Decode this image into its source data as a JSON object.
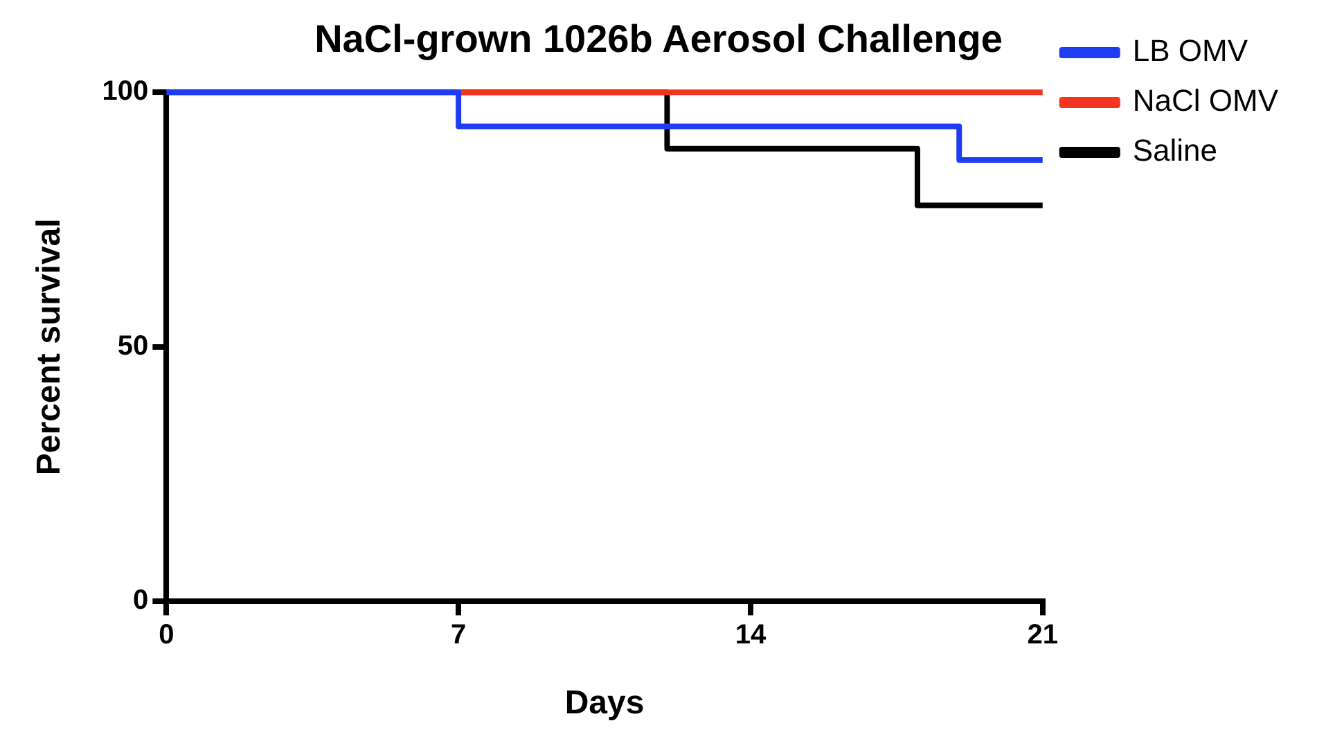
{
  "chart_data": {
    "type": "step",
    "title": "NaCl-grown 1026b Aerosol Challenge",
    "xlabel": "Days",
    "ylabel": "Percent survival",
    "xlim": [
      0,
      21
    ],
    "xticks": [
      0,
      7,
      14,
      21
    ],
    "ylim": [
      0,
      100
    ],
    "yticks": [
      0,
      50,
      100
    ],
    "grid": false,
    "legend": "top right",
    "series": [
      {
        "name": "LB OMV",
        "color": "#1f3cf5",
        "x": [
          0,
          7,
          19,
          21
        ],
        "values": [
          100,
          93.3,
          86.7,
          86.7
        ]
      },
      {
        "name": "NaCl OMV",
        "color": "#f5341f",
        "x": [
          7,
          21
        ],
        "values": [
          100,
          100
        ]
      },
      {
        "name": "Saline",
        "color": "#000000",
        "x": [
          0,
          12,
          18,
          21
        ],
        "values": [
          100,
          88.9,
          77.8,
          77.8
        ]
      }
    ]
  }
}
